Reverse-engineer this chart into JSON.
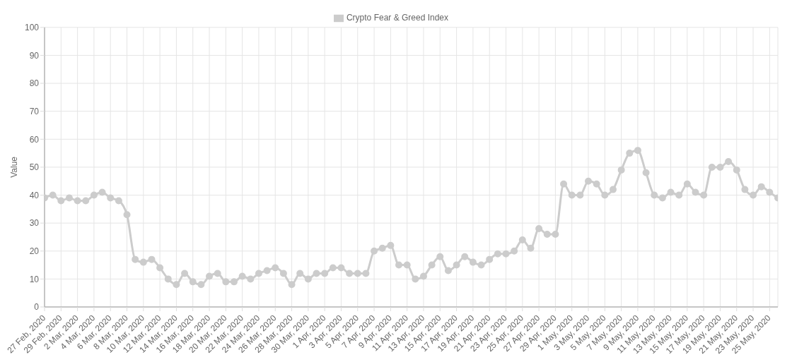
{
  "chart_data": {
    "type": "line",
    "ylabel": "Value",
    "categories": [
      "27 Feb, 2020",
      null,
      "29 Feb, 2020",
      null,
      "2 Mar, 2020",
      null,
      "4 Mar, 2020",
      null,
      "6 Mar, 2020",
      null,
      "8 Mar, 2020",
      null,
      "10 Mar, 2020",
      null,
      "12 Mar, 2020",
      null,
      "14 Mar, 2020",
      null,
      "16 Mar, 2020",
      null,
      "18 Mar, 2020",
      null,
      "20 Mar, 2020",
      null,
      "22 Mar, 2020",
      null,
      "24 Mar, 2020",
      null,
      "26 Mar, 2020",
      null,
      "28 Mar, 2020",
      null,
      "30 Mar, 2020",
      null,
      "1 Apr, 2020",
      null,
      "3 Apr, 2020",
      null,
      "5 Apr, 2020",
      null,
      "7 Apr, 2020",
      null,
      "9 Apr, 2020",
      null,
      "11 Apr, 2020",
      null,
      "13 Apr, 2020",
      null,
      "15 Apr, 2020",
      null,
      "17 Apr, 2020",
      null,
      "19 Apr, 2020",
      null,
      "21 Apr, 2020",
      null,
      "23 Apr, 2020",
      null,
      "25 Apr, 2020",
      null,
      "27 Apr, 2020",
      null,
      "29 Apr, 2020",
      null,
      "1 May, 2020",
      null,
      "3 May, 2020",
      null,
      "5 May, 2020",
      null,
      "7 May, 2020",
      null,
      "9 May, 2020",
      null,
      "11 May, 2020",
      null,
      "13 May, 2020",
      null,
      "15 May, 2020",
      null,
      "17 May, 2020",
      null,
      "19 May, 2020",
      null,
      "21 May, 2020",
      null,
      "23 May, 2020",
      null,
      "25 May, 2020",
      null
    ],
    "series": [
      {
        "name": "Crypto Fear & Greed Index",
        "color": "#cccccc",
        "values": [
          39,
          40,
          38,
          39,
          38,
          38,
          40,
          41,
          39,
          38,
          33,
          17,
          16,
          17,
          14,
          10,
          8,
          12,
          9,
          8,
          11,
          12,
          9,
          9,
          11,
          10,
          12,
          13,
          14,
          12,
          8,
          12,
          10,
          12,
          12,
          14,
          14,
          12,
          12,
          12,
          20,
          21,
          22,
          15,
          15,
          10,
          11,
          15,
          18,
          13,
          15,
          18,
          16,
          15,
          17,
          19,
          19,
          20,
          24,
          21,
          28,
          26,
          26,
          44,
          40,
          40,
          45,
          44,
          40,
          42,
          49,
          55,
          56,
          48,
          40,
          39,
          41,
          40,
          44,
          41,
          40,
          50,
          50,
          52,
          49,
          42,
          40,
          43,
          41,
          39
        ]
      }
    ],
    "ylim": [
      0,
      100
    ],
    "yticks": [
      0,
      10,
      20,
      30,
      40,
      50,
      60,
      70,
      80,
      90,
      100
    ],
    "grid": true,
    "legend": "top",
    "marker": "circle",
    "line_style": "solid"
  }
}
